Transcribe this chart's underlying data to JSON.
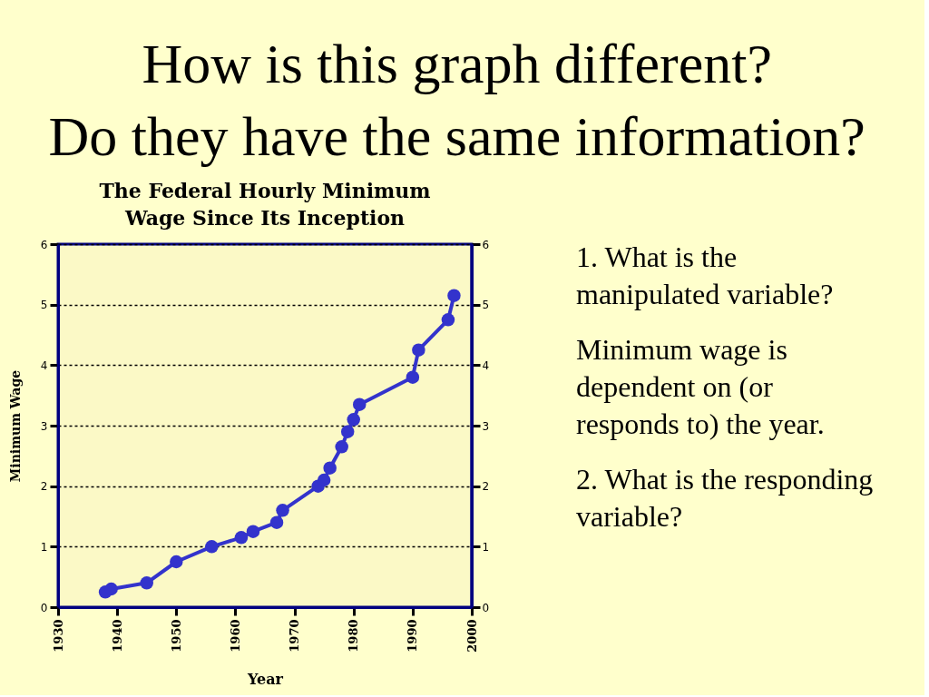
{
  "chart_data": {
    "type": "line",
    "title": "How is this graph different?\nDo they have the same information?",
    "subtitle": "The Federal Hourly Minimum\nWage Since Its Inception",
    "xlabel": "Year",
    "ylabel": "Minimum Wage",
    "x": [
      1938,
      1939,
      1945,
      1950,
      1956,
      1961,
      1963,
      1967,
      1968,
      1974,
      1975,
      1976,
      1978,
      1979,
      1980,
      1981,
      1990,
      1991,
      1996,
      1997
    ],
    "series": [
      {
        "color": "#3333cc",
        "values": [
          0.25,
          0.3,
          0.4,
          0.75,
          1.0,
          1.15,
          1.25,
          1.4,
          1.6,
          2.0,
          2.1,
          2.3,
          2.65,
          2.9,
          3.1,
          3.35,
          3.8,
          4.25,
          4.75,
          5.15
        ]
      }
    ],
    "xlim": [
      1930,
      2000
    ],
    "xticks": [
      1930,
      1940,
      1950,
      1960,
      1970,
      1980,
      1990,
      2000
    ],
    "ylim": [
      0,
      6
    ],
    "yticks": [
      0,
      1,
      2,
      3,
      4,
      5,
      6
    ],
    "y2lim": [
      0,
      6
    ],
    "y2ticks": [
      0,
      1,
      2,
      3,
      4,
      5,
      6
    ],
    "grid": "y",
    "marker": "circle",
    "line_style": "solid",
    "annotations": [
      "1. What is the\nmanipulated variable?",
      "Minimum wage is\ndependent on (or\nresponds to) the year.",
      "2. What is the responding\nvariable?"
    ]
  }
}
